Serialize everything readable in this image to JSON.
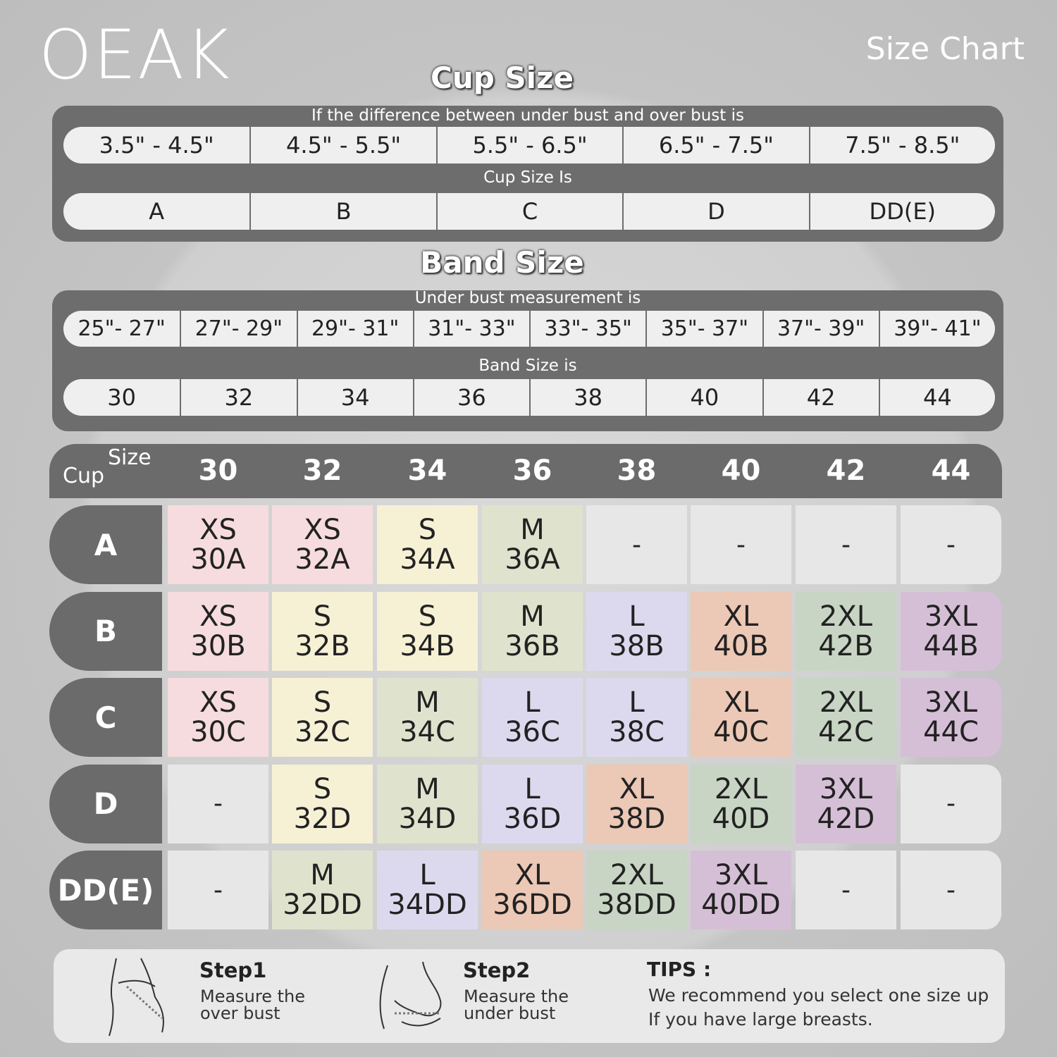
{
  "brand": "OEAK",
  "page_title": "Size Chart",
  "cup_section": {
    "title": "Cup Size",
    "caption": "If the  difference between under bust and over bust is",
    "ranges": [
      "3.5\" -  4.5\"",
      "4.5\" -  5.5\"",
      "5.5\" -  6.5\"",
      "6.5\" -  7.5\"",
      "7.5\" -  8.5\""
    ],
    "result_caption": "Cup Size Is",
    "cups": [
      "A",
      "B",
      "C",
      "D",
      "DD(E)"
    ]
  },
  "band_section": {
    "title": "Band Size",
    "caption": "Under bust measurement is",
    "ranges": [
      "25\"- 27\"",
      "27\"- 29\"",
      "29\"- 31\"",
      "31\"- 33\"",
      "33\"- 35\"",
      "35\"- 37\"",
      "37\"- 39\"",
      "39\"- 41\""
    ],
    "result_caption": "Band Size is",
    "bands": [
      "30",
      "32",
      "34",
      "36",
      "38",
      "40",
      "42",
      "44"
    ]
  },
  "table": {
    "corner_top": "Size",
    "corner_bottom": "Cup",
    "columns": [
      "30",
      "32",
      "34",
      "36",
      "38",
      "40",
      "42",
      "44"
    ],
    "size_colors": {
      "XS": "#f6dcdf",
      "S": "#f6f0d5",
      "M": "#dfe3cd",
      "L": "#dcd9ef",
      "XL": "#ecc8b6",
      "2XL": "#c8d5c4",
      "3XL": "#d5bfd6"
    },
    "empty_color": "#e7e7e7",
    "rows": [
      {
        "label": "A",
        "cells": [
          {
            "size": "XS",
            "code": "30A"
          },
          {
            "size": "XS",
            "code": "32A"
          },
          {
            "size": "S",
            "code": "34A"
          },
          {
            "size": "M",
            "code": "36A"
          },
          "-",
          "-",
          "-",
          "-"
        ]
      },
      {
        "label": "B",
        "cells": [
          {
            "size": "XS",
            "code": "30B"
          },
          {
            "size": "S",
            "code": "32B"
          },
          {
            "size": "S",
            "code": "34B"
          },
          {
            "size": "M",
            "code": "36B"
          },
          {
            "size": "L",
            "code": "38B"
          },
          {
            "size": "XL",
            "code": "40B"
          },
          {
            "size": "2XL",
            "code": "42B"
          },
          {
            "size": "3XL",
            "code": "44B"
          }
        ]
      },
      {
        "label": "C",
        "cells": [
          {
            "size": "XS",
            "code": "30C"
          },
          {
            "size": "S",
            "code": "32C"
          },
          {
            "size": "M",
            "code": "34C"
          },
          {
            "size": "L",
            "code": "36C"
          },
          {
            "size": "L",
            "code": "38C"
          },
          {
            "size": "XL",
            "code": "40C"
          },
          {
            "size": "2XL",
            "code": "42C"
          },
          {
            "size": "3XL",
            "code": "44C"
          }
        ]
      },
      {
        "label": "D",
        "cells": [
          "-",
          {
            "size": "S",
            "code": "32D"
          },
          {
            "size": "M",
            "code": "34D"
          },
          {
            "size": "L",
            "code": "36D"
          },
          {
            "size": "XL",
            "code": "38D"
          },
          {
            "size": "2XL",
            "code": "40D"
          },
          {
            "size": "3XL",
            "code": "42D"
          },
          "-"
        ]
      },
      {
        "label": "DD(E)",
        "cells": [
          "-",
          {
            "size": "M",
            "code": "32DD"
          },
          {
            "size": "L",
            "code": "34DD"
          },
          {
            "size": "XL",
            "code": "36DD"
          },
          {
            "size": "2XL",
            "code": "38DD"
          },
          {
            "size": "3XL",
            "code": "40DD"
          },
          "-",
          "-"
        ]
      }
    ]
  },
  "steps": [
    {
      "title": "Step1",
      "lines": [
        "Measure the",
        "over bust"
      ]
    },
    {
      "title": "Step2",
      "lines": [
        "Measure the",
        "under bust"
      ]
    }
  ],
  "tips": {
    "title": "TIPS :",
    "lines": [
      "We recommend you select one size up",
      "If you have large breasts."
    ]
  }
}
